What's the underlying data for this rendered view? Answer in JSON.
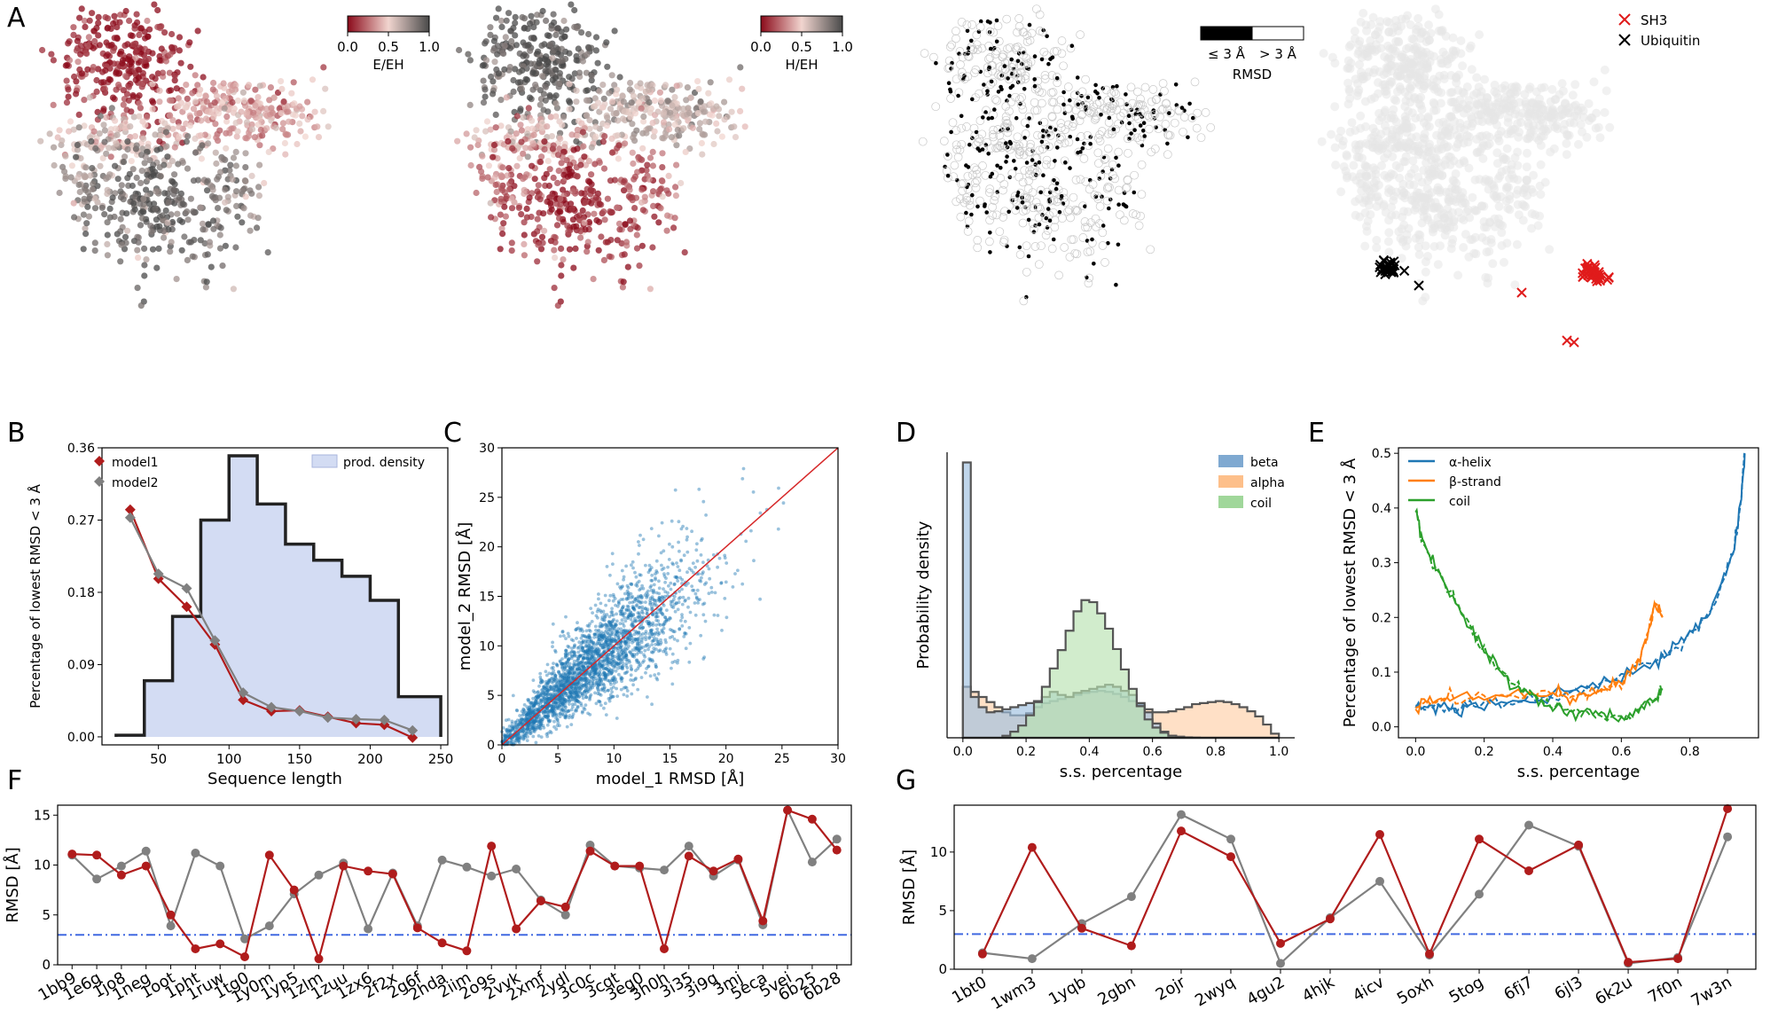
{
  "panel_letters": [
    "A",
    "B",
    "C",
    "D",
    "E",
    "F",
    "G"
  ],
  "colors": {
    "red": "#b01c1c",
    "gray": "#808080",
    "blue": "#1f77b4",
    "orange": "#ff7f0e",
    "green": "#2ca02c",
    "hist_fill": "#d3dcf3",
    "dashline": "#4169e1"
  },
  "panelA": {
    "cbar1": {
      "label": "E/EH",
      "ticks": [
        "0.0",
        "0.5",
        "1.0"
      ]
    },
    "cbar2": {
      "label": "H/EH",
      "ticks": [
        "0.0",
        "0.5",
        "1.0"
      ]
    },
    "rmsd_legend": {
      "left": "≤ 3 Å",
      "right": "> 3 Å",
      "title": "RMSD"
    },
    "marker_legend": [
      {
        "label": "SH3",
        "color": "#e01b1b"
      },
      {
        "label": "Ubiquitin",
        "color": "#000000"
      }
    ]
  },
  "chart_data": [
    {
      "id": "B",
      "type": "line",
      "xlabel": "Sequence length",
      "ylabel": "Percentage of lowest RMSD < 3 Å",
      "xlim": [
        10,
        255
      ],
      "ylim": [
        -0.01,
        0.36
      ],
      "xticks": [
        50,
        100,
        150,
        200,
        250
      ],
      "yticks": [
        0.0,
        0.09,
        0.18,
        0.27,
        0.36
      ],
      "ytick_labels": [
        "0.00",
        "0.09",
        "0.18",
        "0.27",
        "0.36"
      ],
      "histogram": {
        "label": "prod. density",
        "edges": [
          20,
          40,
          60,
          80,
          100,
          120,
          140,
          160,
          180,
          200,
          220,
          240,
          250
        ],
        "heights": [
          0.002,
          0.07,
          0.15,
          0.27,
          0.35,
          0.29,
          0.24,
          0.22,
          0.2,
          0.17,
          0.05,
          0.05
        ]
      },
      "x": [
        30,
        50,
        70,
        90,
        110,
        130,
        150,
        170,
        190,
        210,
        230
      ],
      "series": [
        {
          "name": "model1",
          "values": [
            0.283,
            0.197,
            0.162,
            0.115,
            0.046,
            0.032,
            0.033,
            0.025,
            0.017,
            0.015,
            -0.001
          ]
        },
        {
          "name": "model2",
          "values": [
            0.273,
            0.203,
            0.185,
            0.12,
            0.055,
            0.037,
            0.032,
            0.024,
            0.022,
            0.021,
            0.008
          ]
        }
      ]
    },
    {
      "id": "C",
      "type": "scatter",
      "xlabel": "model_1 RMSD [Å]",
      "ylabel": "model_2 RMSD [Å]",
      "xlim": [
        0,
        30
      ],
      "ylim": [
        0,
        30
      ],
      "xticks": [
        0,
        5,
        10,
        15,
        20,
        25,
        30
      ],
      "yticks": [
        0,
        5,
        10,
        15,
        20,
        25,
        30
      ],
      "diagonal": [
        [
          0,
          0
        ],
        [
          30,
          30
        ]
      ],
      "description_points": "approximately 4000 scattered points clustered along y=x, mostly 5–20 Å"
    },
    {
      "id": "D",
      "type": "histogram",
      "xlabel": "s.s. percentage",
      "ylabel": "Probability density",
      "xlim": [
        -0.05,
        1.05
      ],
      "xticks": [
        0.0,
        0.2,
        0.4,
        0.6,
        0.8,
        1.0
      ],
      "xtick_labels": [
        "0.0",
        "0.2",
        "0.4",
        "0.6",
        "0.8",
        "1.0"
      ],
      "legend": [
        "beta",
        "alpha",
        "coil"
      ],
      "series": [
        {
          "name": "beta",
          "bin_width": 0.025,
          "values": [
            27,
            4,
            3,
            2.5,
            2.6,
            2.8,
            3,
            3.2,
            3.4,
            3.6,
            4,
            4.5,
            4.2,
            4,
            4.4,
            4.6,
            4.8,
            5,
            5.2,
            5,
            4.6,
            4.2,
            3.4,
            2.5,
            1.4,
            0.6,
            0.2,
            0.1,
            0.05,
            0.02,
            0,
            0,
            0,
            0,
            0,
            0,
            0,
            0,
            0,
            0
          ]
        },
        {
          "name": "alpha",
          "bin_width": 0.025,
          "values": [
            5,
            4.5,
            4,
            3.5,
            3,
            2.5,
            2.2,
            2.2,
            2.4,
            3,
            3.4,
            3.6,
            3.8,
            4,
            4.2,
            4.4,
            4.5,
            4.6,
            4.5,
            4.3,
            4,
            3.6,
            3.2,
            2.8,
            2.5,
            2.5,
            2.6,
            2.8,
            3,
            3.3,
            3.4,
            3.5,
            3.6,
            3.5,
            3.3,
            3,
            2.6,
            2.1,
            1.3,
            0.4
          ]
        },
        {
          "name": "coil",
          "bin_width": 0.025,
          "values": [
            0,
            0,
            0,
            0,
            0,
            0.2,
            0.6,
            1.2,
            2.2,
            3.5,
            5,
            6.8,
            8.6,
            10.5,
            12.4,
            13.5,
            13.3,
            12.2,
            10.7,
            8.7,
            6.7,
            4.8,
            3.1,
            1.8,
            1,
            0.5,
            0.2,
            0.1,
            0,
            0,
            0,
            0,
            0,
            0,
            0,
            0,
            0,
            0,
            0,
            0
          ]
        }
      ]
    },
    {
      "id": "E",
      "type": "line",
      "xlabel": "s.s. percentage",
      "ylabel": "Percentage of lowest RMSD < 3 Å",
      "xlim": [
        -0.05,
        1.0
      ],
      "ylim": [
        -0.02,
        0.51
      ],
      "xticks": [
        0.0,
        0.2,
        0.4,
        0.6,
        0.8
      ],
      "xtick_labels": [
        "0.0",
        "0.2",
        "0.4",
        "0.6",
        "0.8"
      ],
      "yticks": [
        0.0,
        0.1,
        0.2,
        0.3,
        0.4,
        0.5
      ],
      "ytick_labels": [
        "0.0",
        "0.1",
        "0.2",
        "0.3",
        "0.4",
        "0.5"
      ],
      "legend": [
        "α-helix",
        "β-strand",
        "coil"
      ],
      "series": [
        {
          "name": "α-helix",
          "x": [
            0.0,
            0.05,
            0.1,
            0.15,
            0.2,
            0.3,
            0.4,
            0.5,
            0.6,
            0.7,
            0.75,
            0.8,
            0.85,
            0.9,
            0.93,
            0.95,
            0.96
          ],
          "values": [
            0.04,
            0.035,
            0.03,
            0.035,
            0.04,
            0.045,
            0.055,
            0.07,
            0.09,
            0.12,
            0.14,
            0.17,
            0.2,
            0.27,
            0.33,
            0.42,
            0.5
          ]
        },
        {
          "name": "β-strand",
          "x": [
            0.0,
            0.05,
            0.1,
            0.2,
            0.3,
            0.4,
            0.45,
            0.5,
            0.55,
            0.6,
            0.65,
            0.68,
            0.7,
            0.72
          ],
          "values": [
            0.04,
            0.045,
            0.05,
            0.055,
            0.06,
            0.06,
            0.055,
            0.06,
            0.07,
            0.08,
            0.12,
            0.18,
            0.23,
            0.2
          ]
        },
        {
          "name": "coil",
          "x": [
            0.0,
            0.02,
            0.05,
            0.1,
            0.15,
            0.2,
            0.25,
            0.3,
            0.35,
            0.4,
            0.45,
            0.5,
            0.55,
            0.6,
            0.65,
            0.7,
            0.72
          ],
          "values": [
            0.4,
            0.34,
            0.3,
            0.25,
            0.19,
            0.14,
            0.1,
            0.07,
            0.055,
            0.04,
            0.03,
            0.025,
            0.02,
            0.015,
            0.025,
            0.05,
            0.07
          ]
        }
      ]
    },
    {
      "id": "F",
      "type": "line",
      "ylabel": "RMSD [Å]",
      "ylim": [
        0,
        16
      ],
      "yticks": [
        0,
        5,
        10,
        15
      ],
      "threshold": 3,
      "categories": [
        "1bb9",
        "1e6g",
        "1jo8",
        "1neg",
        "1oot",
        "1pht",
        "1ruw",
        "1tg0",
        "1y0m",
        "1yp5",
        "1zlm",
        "1zuu",
        "1zx6",
        "2f2x",
        "2g6f",
        "2hda",
        "2iim",
        "2o9s",
        "2vvk",
        "2xmf",
        "2ydl",
        "3c0c",
        "3cqt",
        "3eg0",
        "3h0h",
        "3i35",
        "3i9q",
        "3mj",
        "5eca",
        "5vei",
        "6b25",
        "6b28"
      ],
      "series": [
        {
          "name": "model1",
          "values": [
            11.1,
            11.0,
            9.0,
            9.9,
            5.0,
            1.6,
            2.1,
            0.8,
            11.0,
            7.5,
            0.6,
            9.9,
            9.4,
            9.1,
            3.7,
            2.2,
            1.4,
            11.9,
            3.6,
            6.4,
            5.8,
            11.4,
            9.9,
            9.9,
            1.6,
            10.9,
            9.4,
            10.6,
            4.4,
            15.5,
            14.6,
            11.5
          ]
        },
        {
          "name": "model2",
          "values": [
            11.0,
            8.6,
            9.9,
            11.4,
            3.9,
            11.2,
            9.9,
            2.6,
            3.9,
            7.1,
            9.0,
            10.2,
            3.6,
            9.2,
            3.9,
            10.5,
            9.8,
            8.9,
            9.6,
            6.5,
            5.0,
            12.0,
            9.9,
            9.7,
            9.5,
            11.9,
            8.9,
            10.5,
            4.0,
            15.5,
            10.3,
            12.6
          ]
        }
      ]
    },
    {
      "id": "G",
      "type": "line",
      "ylabel": "RMSD [Å]",
      "ylim": [
        0,
        14
      ],
      "yticks": [
        0,
        5,
        10
      ],
      "threshold": 3,
      "categories": [
        "1bt0",
        "1wm3",
        "1yqb",
        "2gbn",
        "2ojr",
        "2wyq",
        "4gu2",
        "4hjk",
        "4icv",
        "5oxh",
        "5tog",
        "6fj7",
        "6jl3",
        "6k2u",
        "7f0n",
        "7w3n"
      ],
      "series": [
        {
          "name": "model1",
          "values": [
            1.3,
            10.4,
            3.5,
            2.0,
            11.8,
            9.6,
            2.2,
            4.3,
            11.5,
            1.3,
            11.1,
            8.4,
            10.6,
            0.6,
            0.9,
            13.7
          ]
        },
        {
          "name": "model2",
          "values": [
            1.4,
            0.9,
            3.9,
            6.2,
            13.2,
            11.1,
            0.5,
            4.4,
            7.5,
            1.2,
            6.4,
            12.3,
            10.5,
            0.5,
            1.0,
            11.3
          ]
        }
      ]
    }
  ]
}
